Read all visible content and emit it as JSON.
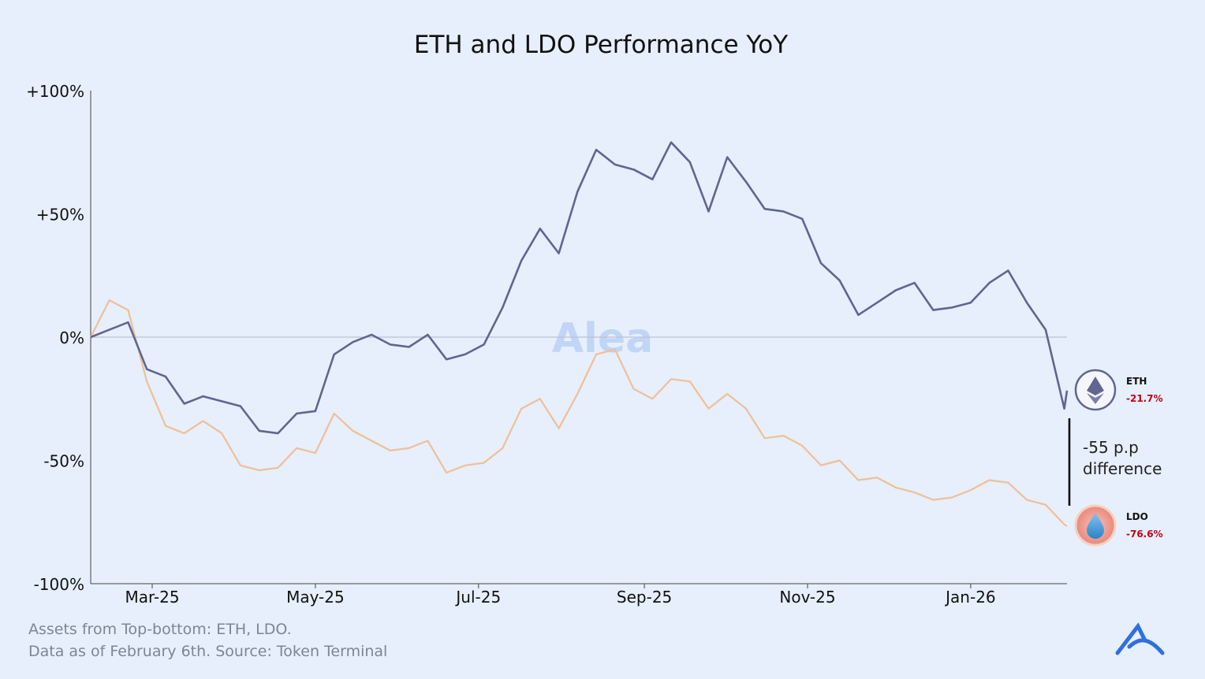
{
  "chart_data": {
    "type": "line",
    "title": "ETH and LDO Performance YoY",
    "xlabel": "",
    "ylabel": "",
    "ylim": [
      -100,
      100
    ],
    "yticks": [
      "+100%",
      "+50%",
      "0%",
      "-50%",
      "-100%"
    ],
    "ytick_values": [
      100,
      50,
      0,
      -50,
      -100
    ],
    "xticks": [
      "Mar-25",
      "May-25",
      "Jul-25",
      "Sep-25",
      "Nov-25",
      "Jan-26"
    ],
    "xtick_dates": [
      "2025-03-01",
      "2025-05-01",
      "2025-07-01",
      "2025-09-01",
      "2025-11-01",
      "2026-01-01"
    ],
    "xlim": [
      "2025-02-06",
      "2026-02-06"
    ],
    "grid": false,
    "zero_line": true,
    "x": [
      "2025-02-06",
      "2025-02-13",
      "2025-02-20",
      "2025-02-27",
      "2025-03-06",
      "2025-03-13",
      "2025-03-20",
      "2025-03-27",
      "2025-04-03",
      "2025-04-10",
      "2025-04-17",
      "2025-04-24",
      "2025-05-01",
      "2025-05-08",
      "2025-05-15",
      "2025-05-22",
      "2025-05-29",
      "2025-06-05",
      "2025-06-12",
      "2025-06-19",
      "2025-06-26",
      "2025-07-03",
      "2025-07-10",
      "2025-07-17",
      "2025-07-24",
      "2025-07-31",
      "2025-08-07",
      "2025-08-14",
      "2025-08-21",
      "2025-08-28",
      "2025-09-04",
      "2025-09-11",
      "2025-09-18",
      "2025-09-25",
      "2025-10-02",
      "2025-10-09",
      "2025-10-16",
      "2025-10-23",
      "2025-10-30",
      "2025-11-06",
      "2025-11-13",
      "2025-11-20",
      "2025-11-27",
      "2025-12-04",
      "2025-12-11",
      "2025-12-18",
      "2025-12-25",
      "2026-01-01",
      "2026-01-08",
      "2026-01-15",
      "2026-01-22",
      "2026-01-29",
      "2026-02-05",
      "2026-02-06"
    ],
    "series": [
      {
        "name": "ETH",
        "color": "#5f6690",
        "values": [
          0,
          3,
          6,
          -13,
          -16,
          -27,
          -24,
          -26,
          -28,
          -38,
          -39,
          -31,
          -30,
          -7,
          -2,
          1,
          -3,
          -4,
          1,
          -9,
          -7,
          -3,
          12,
          31,
          44,
          34,
          59,
          76,
          70,
          68,
          64,
          79,
          71,
          51,
          73,
          63,
          52,
          51,
          48,
          30,
          23,
          9,
          14,
          19,
          22,
          11,
          12,
          14,
          22,
          27,
          14,
          3,
          -29,
          -21.7
        ]
      },
      {
        "name": "LDO",
        "color": "#f0bf98",
        "values": [
          0,
          15,
          11,
          -18,
          -36,
          -39,
          -34,
          -39,
          -52,
          -54,
          -53,
          -45,
          -47,
          -31,
          -38,
          -42,
          -46,
          -45,
          -42,
          -55,
          -52,
          -51,
          -45,
          -29,
          -25,
          -37,
          -23,
          -7,
          -5,
          -21,
          -25,
          -17,
          -18,
          -29,
          -23,
          -29,
          -41,
          -40,
          -44,
          -52,
          -50,
          -58,
          -57,
          -61,
          -63,
          -66,
          -65,
          -62,
          -58,
          -59,
          -66,
          -68,
          -76,
          -76.6
        ]
      }
    ],
    "end_labels": [
      {
        "asset": "ETH",
        "value": "-21.7%",
        "icon": "ethereum-icon"
      },
      {
        "asset": "LDO",
        "value": "-76.6%",
        "icon": "lido-icon"
      }
    ],
    "annotation": {
      "line1": "-55 p.p",
      "line2": "difference"
    },
    "negative_color": "#c00018",
    "watermark": "Alea",
    "footer": {
      "line1": "Assets from Top-bottom: ETH, LDO.",
      "line2": "Data as of February 6th. Source: Token Terminal"
    },
    "logo": "alea-logo"
  }
}
